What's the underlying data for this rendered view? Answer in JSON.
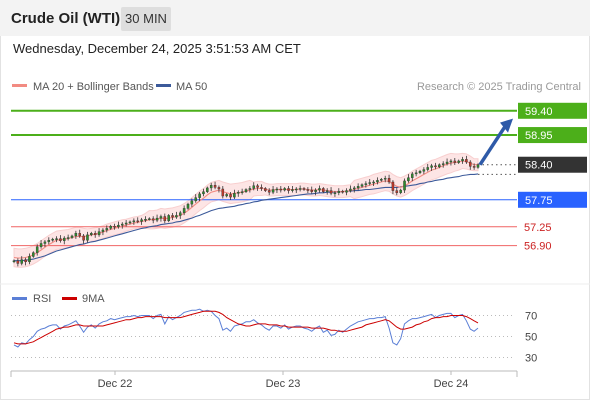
{
  "header": {
    "title": "Crude Oil (WTI)",
    "timeframe": "30 MIN",
    "datetime": "Wednesday, December 24, 2025 3:51:53 AM CET"
  },
  "legend": {
    "ma20_label": "MA 20 + Bollinger Bands",
    "ma50_label": "MA 50",
    "copyright": "Research © 2025 Trading Central",
    "rsi_label": "RSI",
    "rsi_ma_label": "9MA"
  },
  "colors": {
    "ma20": "#f28b82",
    "bollinger": "#fde3e3",
    "ma50": "#3c5a9a",
    "up_candle": "#2d8c2d",
    "down_candle": "#c0392b",
    "resistance": "#4caf1a",
    "pivot": "#2962ff",
    "support": "#f06464",
    "price_tag": "#333333",
    "arrow": "#2e5aa8",
    "rsi": "#5b7fd6",
    "rsi_ma": "#cc0000"
  },
  "chart_data": [
    {
      "type": "candlestick",
      "title": "Crude Oil (WTI)",
      "timeframe": "30 MIN",
      "x_ticks": [
        "Dec 22",
        "Dec 23",
        "Dec 24"
      ],
      "ylim": [
        56.3,
        59.6
      ],
      "levels": [
        {
          "value": 59.4,
          "label": "59.40",
          "kind": "resistance"
        },
        {
          "value": 58.95,
          "label": "58.95",
          "kind": "resistance"
        },
        {
          "value": 58.4,
          "label": "58.40",
          "kind": "last"
        },
        {
          "value": 57.75,
          "label": "57.75",
          "kind": "pivot"
        },
        {
          "value": 57.25,
          "label": "57.25",
          "kind": "support"
        },
        {
          "value": 56.9,
          "label": "56.90",
          "kind": "support"
        }
      ],
      "forecast_arrow": {
        "from": 58.4,
        "to": 59.2
      },
      "closes": [
        56.62,
        56.57,
        56.64,
        56.6,
        56.7,
        56.77,
        56.88,
        56.94,
        56.97,
        57.0,
        57.02,
        57.03,
        56.99,
        57.04,
        57.05,
        57.08,
        57.13,
        57.08,
        57.0,
        57.1,
        57.13,
        57.1,
        57.16,
        57.19,
        57.22,
        57.26,
        57.25,
        57.28,
        57.3,
        57.32,
        57.34,
        57.36,
        57.35,
        57.38,
        57.39,
        57.4,
        57.37,
        57.41,
        57.44,
        57.36,
        57.46,
        57.43,
        57.46,
        57.51,
        57.59,
        57.67,
        57.73,
        57.79,
        57.86,
        57.9,
        57.97,
        58.02,
        57.98,
        57.95,
        57.82,
        57.85,
        57.8,
        57.87,
        57.89,
        57.9,
        57.94,
        57.96,
        58.01,
        57.98,
        57.96,
        57.92,
        57.89,
        57.94,
        57.95,
        57.93,
        57.96,
        57.92,
        57.94,
        57.95,
        57.96,
        57.94,
        57.93,
        57.9,
        57.93,
        57.96,
        57.9,
        57.92,
        57.87,
        57.88,
        57.91,
        57.89,
        57.92,
        57.95,
        57.97,
        58.0,
        58.03,
        58.05,
        58.07,
        58.08,
        58.11,
        58.13,
        58.15,
        58.08,
        57.92,
        57.88,
        57.93,
        58.1,
        58.16,
        58.23,
        58.25,
        58.28,
        58.31,
        58.35,
        58.38,
        58.36,
        58.4,
        58.42,
        58.45,
        58.47,
        58.44,
        58.47,
        58.5,
        58.45,
        58.37,
        58.35,
        58.4
      ],
      "ma20": [
        56.68,
        56.67,
        56.67,
        56.68,
        56.7,
        56.73,
        56.77,
        56.82,
        56.87,
        56.92,
        56.96,
        57.0,
        57.01,
        57.02,
        57.03,
        57.05,
        57.07,
        57.07,
        57.07,
        57.08,
        57.1,
        57.11,
        57.13,
        57.15,
        57.18,
        57.2,
        57.22,
        57.24,
        57.26,
        57.28,
        57.3,
        57.32,
        57.33,
        57.35,
        57.36,
        57.38,
        57.38,
        57.39,
        57.41,
        57.4,
        57.41,
        57.42,
        57.44,
        57.46,
        57.5,
        57.55,
        57.61,
        57.67,
        57.73,
        57.78,
        57.84,
        57.89,
        57.91,
        57.93,
        57.9,
        57.88,
        57.86,
        57.87,
        57.88,
        57.89,
        57.91,
        57.93,
        57.95,
        57.96,
        57.96,
        57.95,
        57.93,
        57.93,
        57.94,
        57.94,
        57.94,
        57.94,
        57.94,
        57.94,
        57.95,
        57.95,
        57.94,
        57.93,
        57.93,
        57.94,
        57.93,
        57.92,
        57.91,
        57.9,
        57.9,
        57.9,
        57.91,
        57.92,
        57.94,
        57.96,
        57.98,
        58.0,
        58.02,
        58.04,
        58.06,
        58.08,
        58.1,
        58.09,
        58.04,
        58.0,
        57.98,
        58.01,
        58.05,
        58.1,
        58.14,
        58.18,
        58.22,
        58.26,
        58.3,
        58.32,
        58.35,
        58.38,
        58.41,
        58.43,
        58.44,
        58.45,
        58.47,
        58.46,
        58.43,
        58.4,
        58.4
      ],
      "ma50": [
        56.62,
        56.62,
        56.62,
        56.63,
        56.64,
        56.65,
        56.67,
        56.69,
        56.71,
        56.74,
        56.77,
        56.8,
        56.82,
        56.84,
        56.86,
        56.88,
        56.9,
        56.92,
        56.93,
        56.95,
        56.97,
        56.98,
        57.0,
        57.02,
        57.04,
        57.06,
        57.08,
        57.1,
        57.12,
        57.14,
        57.16,
        57.18,
        57.2,
        57.22,
        57.23,
        57.25,
        57.26,
        57.27,
        57.29,
        57.3,
        57.31,
        57.32,
        57.34,
        57.35,
        57.37,
        57.39,
        57.41,
        57.44,
        57.46,
        57.49,
        57.52,
        57.55,
        57.57,
        57.59,
        57.6,
        57.61,
        57.62,
        57.63,
        57.65,
        57.66,
        57.68,
        57.69,
        57.71,
        57.72,
        57.74,
        57.75,
        57.76,
        57.77,
        57.78,
        57.79,
        57.8,
        57.81,
        57.82,
        57.83,
        57.84,
        57.85,
        57.86,
        57.86,
        57.87,
        57.88,
        57.88,
        57.89,
        57.89,
        57.9,
        57.9,
        57.9,
        57.91,
        57.91,
        57.92,
        57.92,
        57.93,
        57.94,
        57.94,
        57.95,
        57.96,
        57.97,
        57.98,
        57.98,
        57.98,
        57.98,
        57.99,
        58.0,
        58.01,
        58.02,
        58.03,
        58.05,
        58.06,
        58.08,
        58.09,
        58.11,
        58.12,
        58.13,
        58.15,
        58.16,
        58.17,
        58.18,
        58.2,
        58.21,
        58.22,
        58.22,
        58.23
      ]
    },
    {
      "type": "line",
      "title": "RSI",
      "ylim": [
        20,
        80
      ],
      "y_ticks": [
        70,
        50,
        30
      ],
      "series": [
        {
          "name": "RSI",
          "values": [
            42,
            40,
            44,
            43,
            47,
            50,
            55,
            57,
            58,
            60,
            61,
            61,
            57,
            60,
            61,
            63,
            65,
            60,
            54,
            59,
            61,
            58,
            62,
            64,
            65,
            67,
            66,
            67,
            68,
            69,
            69,
            70,
            69,
            70,
            70,
            70,
            67,
            70,
            71,
            62,
            69,
            66,
            68,
            70,
            73,
            74,
            75,
            75,
            76,
            74,
            75,
            74,
            70,
            67,
            56,
            58,
            55,
            60,
            61,
            62,
            64,
            64,
            66,
            63,
            61,
            58,
            56,
            60,
            60,
            58,
            61,
            57,
            59,
            60,
            60,
            58,
            57,
            55,
            58,
            60,
            54,
            56,
            51,
            52,
            56,
            54,
            57,
            60,
            62,
            64,
            65,
            66,
            67,
            67,
            68,
            68,
            69,
            58,
            44,
            42,
            48,
            62,
            65,
            67,
            67,
            68,
            69,
            70,
            71,
            68,
            70,
            71,
            72,
            72,
            68,
            70,
            71,
            65,
            57,
            55,
            58
          ]
        },
        {
          "name": "9MA",
          "values": [
            44,
            43,
            43,
            43,
            44,
            45,
            47,
            49,
            51,
            53,
            55,
            57,
            58,
            59,
            59,
            60,
            61,
            61,
            60,
            60,
            60,
            60,
            60,
            60,
            61,
            62,
            63,
            64,
            65,
            66,
            66,
            67,
            68,
            68,
            69,
            69,
            69,
            69,
            69,
            68,
            68,
            68,
            68,
            68,
            69,
            70,
            71,
            72,
            73,
            74,
            74,
            74,
            74,
            73,
            71,
            68,
            66,
            64,
            62,
            61,
            60,
            60,
            61,
            62,
            62,
            62,
            61,
            61,
            61,
            60,
            60,
            59,
            59,
            59,
            59,
            59,
            59,
            58,
            58,
            58,
            58,
            57,
            56,
            56,
            55,
            55,
            55,
            56,
            57,
            58,
            59,
            61,
            62,
            63,
            64,
            65,
            66,
            65,
            62,
            59,
            57,
            57,
            58,
            59,
            61,
            62,
            64,
            65,
            67,
            68,
            68,
            69,
            69,
            70,
            70,
            70,
            70,
            69,
            67,
            65,
            63
          ]
        }
      ]
    }
  ]
}
